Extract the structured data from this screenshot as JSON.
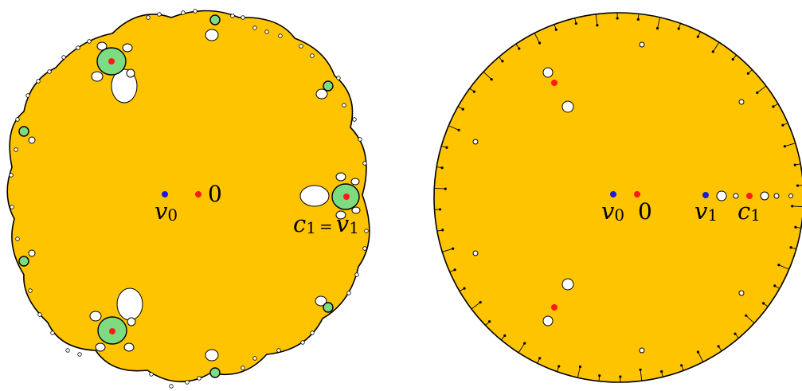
{
  "colors": {
    "region_fill": "#FFC400",
    "component_fill": "#7DDC82",
    "outline": "#000000",
    "critical_dot": "#FF1A1A",
    "value_dot": "#1A1AE6",
    "hole_fill": "#FFFFFF"
  },
  "left_panel": {
    "labels": {
      "v0_main": "v",
      "v0_sub": "0",
      "zero": "0",
      "c1_main": "c",
      "c1_sub": "1",
      "equals": "=",
      "v1_main": "v",
      "v1_sub": "1"
    }
  },
  "right_panel": {
    "labels": {
      "v0_main": "v",
      "v0_sub": "0",
      "zero": "0",
      "v1_main": "v",
      "v1_sub": "1",
      "c1_main": "c",
      "c1_sub": "1"
    }
  }
}
